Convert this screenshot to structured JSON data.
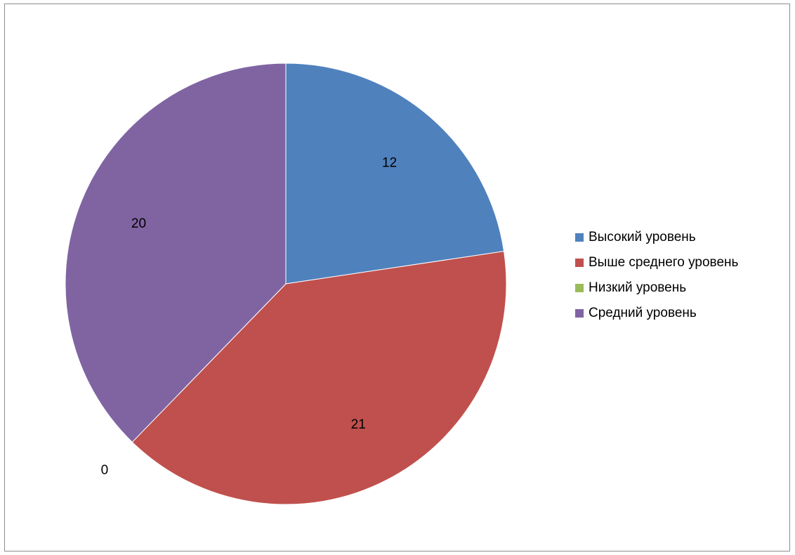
{
  "chart_data": {
    "type": "pie",
    "title": "",
    "legend_position": "right",
    "start_angle_deg": 0,
    "direction": "clockwise",
    "slices": [
      {
        "label": "Высокий уровень",
        "value": 12,
        "color": "#4F81BD"
      },
      {
        "label": "Выше среднего уровень",
        "value": 21,
        "color": "#C0504D"
      },
      {
        "label": "Низкий уровень",
        "value": 0,
        "color": "#9BBB59"
      },
      {
        "label": "Средний уровень",
        "value": 20,
        "color": "#8064A2"
      }
    ]
  }
}
